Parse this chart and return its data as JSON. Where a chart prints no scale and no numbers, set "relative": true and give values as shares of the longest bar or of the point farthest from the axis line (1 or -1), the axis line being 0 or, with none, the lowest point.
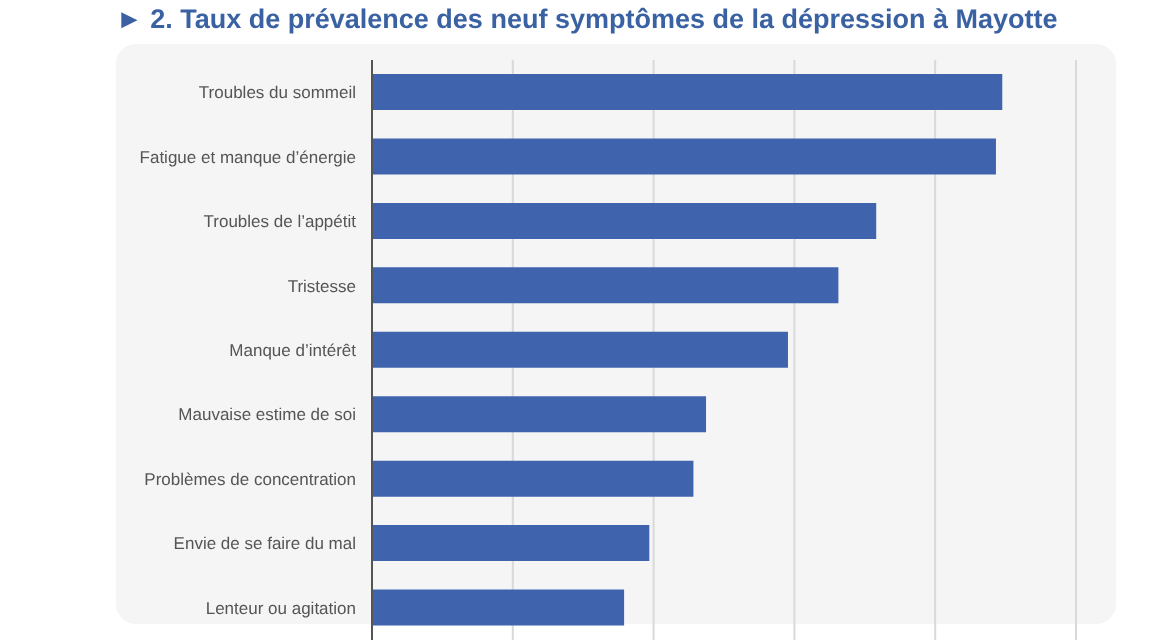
{
  "chart_data": {
    "type": "bar",
    "orientation": "horizontal",
    "relative": true,
    "title": "► 2. Taux de prévalence des neuf symptômes de la dépression à Mayotte",
    "categories": [
      "Troubles du sommeil",
      "Fatigue et manque d’énergie",
      "Troubles de l’appétit",
      "Tristesse",
      "Manque d’intérêt",
      "Mauvaise estime de soi",
      "Problèmes de concentration",
      "Envie de se faire du mal",
      "Lenteur ou agitation"
    ],
    "values": [
      1,
      0.99,
      0.8,
      0.74,
      0.66,
      0.53,
      0.51,
      0.44,
      0.4
    ],
    "color": "#3f64ad",
    "grid": "x"
  }
}
